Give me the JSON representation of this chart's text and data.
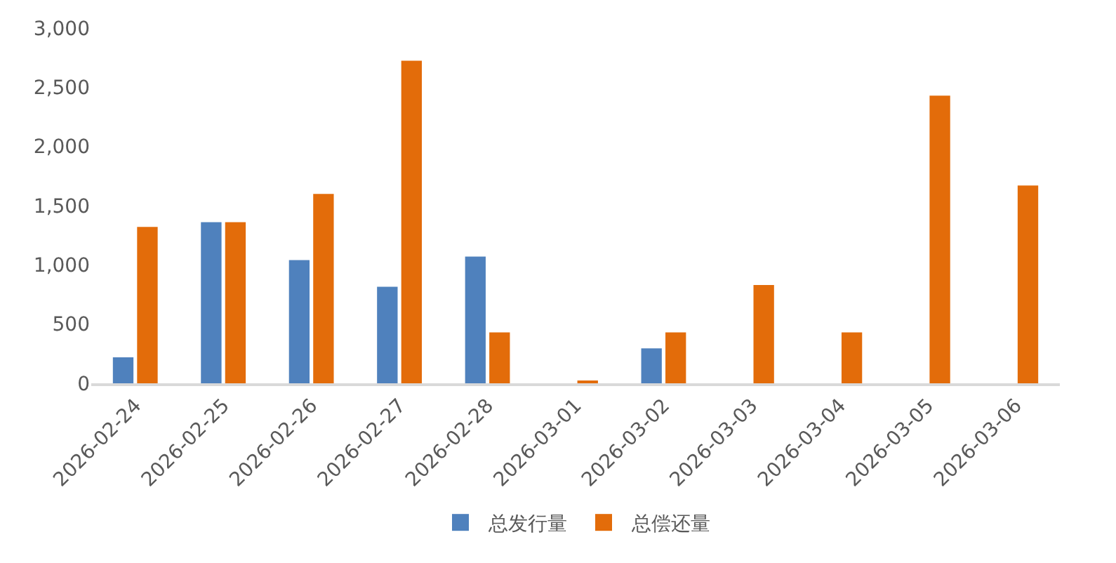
{
  "chart_data": {
    "type": "bar",
    "categories": [
      "2026-02-24",
      "2026-02-25",
      "2026-02-26",
      "2026-02-27",
      "2026-02-28",
      "2026-03-01",
      "2026-03-02",
      "2026-03-03",
      "2026-03-04",
      "2026-03-05",
      "2026-03-06"
    ],
    "series": [
      {
        "name": "总发行量",
        "color": "#4f81bd",
        "values": [
          220,
          1360,
          1040,
          815,
          1070,
          null,
          295,
          null,
          null,
          null,
          null
        ]
      },
      {
        "name": "总偿还量",
        "color": "#e36c0a",
        "values": [
          1320,
          1360,
          1600,
          2725,
          430,
          15,
          430,
          830,
          430,
          2430,
          1670
        ]
      }
    ],
    "ylim": [
      0,
      3000
    ],
    "yticks": [
      {
        "value": 0,
        "label": "0"
      },
      {
        "value": 500,
        "label": "500"
      },
      {
        "value": 1000,
        "label": "1,000"
      },
      {
        "value": 1500,
        "label": "1,500"
      },
      {
        "value": 2000,
        "label": "2,000"
      },
      {
        "value": 2500,
        "label": "2,500"
      },
      {
        "value": 3000,
        "label": "3,000"
      }
    ],
    "grid": false,
    "legend": "bottom"
  }
}
